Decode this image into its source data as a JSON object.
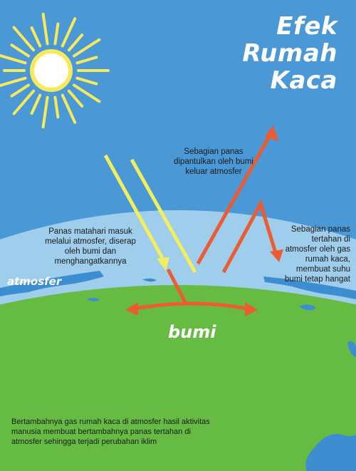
{
  "title": {
    "line1": "Efek",
    "line2": "Rumah",
    "line3": "Kaca"
  },
  "labels": {
    "atmosphere": "atmosfer",
    "earth": "bumi"
  },
  "annotations": {
    "reflected": "Sebagian panas dipantulkan oleh bumi keluar atmosfer",
    "absorbed": "Panas matahari masuk melalui atmosfer, diserap oleh bumi dan menghangatkannya",
    "trapped": "Sebagian panas tertahan di atmosfer oleh gas rumah kaca, membuat suhu bumi tetap hangat",
    "footer": "Bertambahnya gas rumah kaca di atmosfer hasil aktivitas manusia membuat bertambahnya panas tertahan di atmosfer sehingga terjadi perubahan iklim"
  },
  "colors": {
    "sky": "#4a98d6",
    "atmosphere": "#9fcdec",
    "earth": "#66bb43",
    "ocean": "#3d8ed0",
    "sun": "#f7e95a",
    "sunlight": "#f3ee5e",
    "heat": "#ed5b33"
  },
  "icons": [
    "sun-icon"
  ]
}
